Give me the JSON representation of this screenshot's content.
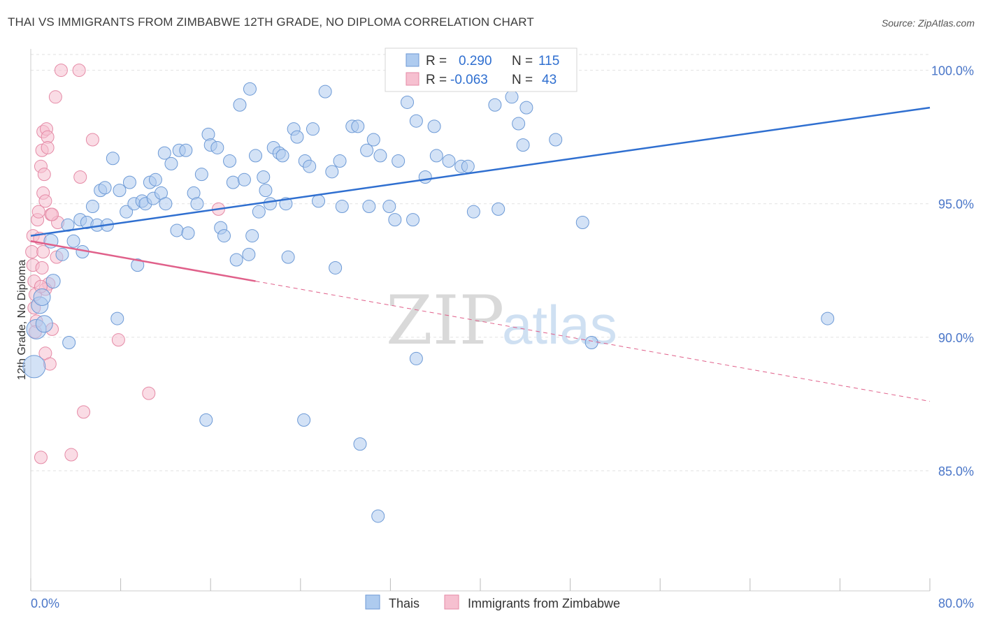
{
  "title": "THAI VS IMMIGRANTS FROM ZIMBABWE 12TH GRADE, NO DIPLOMA CORRELATION CHART",
  "source": "Source: ZipAtlas.com",
  "watermark": {
    "zip": "ZIP",
    "atlas": "atlas"
  },
  "colors": {
    "thais_fill": "#aecbef",
    "thais_stroke": "#6d9ad6",
    "thais_line": "#2f6fd0",
    "zim_fill": "#f6c0d0",
    "zim_stroke": "#e58aa6",
    "zim_line": "#e0608a",
    "grid": "#e2e2e2",
    "tick_text": "#4a76c8"
  },
  "stats": {
    "r_label": "R =",
    "n_label": "N =",
    "thais": {
      "r": "0.290",
      "n": "115"
    },
    "zim": {
      "r": "-0.063",
      "n": "43"
    }
  },
  "chart_data": {
    "type": "scatter",
    "xlabel": "",
    "ylabel": "12th Grade, No Diploma",
    "xlim": [
      0,
      80
    ],
    "ylim": [
      80.5,
      100.8
    ],
    "x_ticks": [
      "0.0%",
      "80.0%"
    ],
    "y_ticks": [
      "100.0%",
      "95.0%",
      "90.0%",
      "85.0%"
    ],
    "y_tick_values": [
      100,
      95,
      90,
      85
    ],
    "grid": true,
    "legend": [
      "Thais",
      "Immigrants from Zimbabwe"
    ],
    "series": [
      {
        "name": "Thais",
        "trend": {
          "x": [
            0,
            80
          ],
          "y": [
            93.8,
            98.6
          ],
          "style": "solid"
        },
        "points": [
          [
            0.3,
            88.9,
            16
          ],
          [
            0.5,
            90.3,
            14
          ],
          [
            0.8,
            91.2,
            12
          ],
          [
            1.2,
            90.5,
            12
          ],
          [
            1.0,
            91.5,
            12
          ],
          [
            2.0,
            92.1,
            10
          ],
          [
            1.8,
            93.6,
            10
          ],
          [
            2.8,
            93.1,
            9
          ],
          [
            3.4,
            89.8,
            9
          ],
          [
            3.3,
            94.2,
            9
          ],
          [
            3.8,
            93.6,
            9
          ],
          [
            4.4,
            94.4,
            9
          ],
          [
            4.6,
            93.2,
            9
          ],
          [
            5.0,
            94.3,
            9
          ],
          [
            5.5,
            94.9,
            9
          ],
          [
            5.9,
            94.2,
            9
          ],
          [
            6.2,
            95.5,
            9
          ],
          [
            6.6,
            95.6,
            9
          ],
          [
            6.8,
            94.2,
            9
          ],
          [
            7.3,
            96.7,
            9
          ],
          [
            7.9,
            95.5,
            9
          ],
          [
            8.5,
            94.7,
            9
          ],
          [
            8.8,
            95.8,
            9
          ],
          [
            9.2,
            95.0,
            9
          ],
          [
            9.5,
            92.7,
            9
          ],
          [
            9.9,
            95.1,
            9
          ],
          [
            10.2,
            95.0,
            9
          ],
          [
            10.6,
            95.8,
            9
          ],
          [
            10.9,
            95.2,
            9
          ],
          [
            11.1,
            95.9,
            9
          ],
          [
            11.6,
            95.4,
            9
          ],
          [
            12.0,
            95.0,
            9
          ],
          [
            11.9,
            96.9,
            9
          ],
          [
            12.5,
            96.5,
            9
          ],
          [
            13.0,
            94.0,
            9
          ],
          [
            13.2,
            97.0,
            9
          ],
          [
            13.8,
            97.0,
            9
          ],
          [
            14.0,
            93.9,
            9
          ],
          [
            14.5,
            95.4,
            9
          ],
          [
            14.8,
            95.0,
            9
          ],
          [
            15.2,
            96.1,
            9
          ],
          [
            15.8,
            97.6,
            9
          ],
          [
            16.0,
            97.2,
            9
          ],
          [
            16.6,
            97.1,
            9
          ],
          [
            16.9,
            94.1,
            9
          ],
          [
            17.2,
            93.8,
            9
          ],
          [
            17.7,
            96.6,
            9
          ],
          [
            18.0,
            95.8,
            9
          ],
          [
            18.3,
            92.9,
            9
          ],
          [
            18.6,
            98.7,
            9
          ],
          [
            19.0,
            95.9,
            9
          ],
          [
            19.4,
            93.1,
            9
          ],
          [
            19.7,
            93.8,
            9
          ],
          [
            20.0,
            96.8,
            9
          ],
          [
            20.3,
            94.7,
            9
          ],
          [
            20.7,
            96.0,
            9
          ],
          [
            20.9,
            95.5,
            9
          ],
          [
            21.3,
            95.0,
            9
          ],
          [
            21.6,
            97.1,
            9
          ],
          [
            22.1,
            96.9,
            9
          ],
          [
            22.4,
            96.8,
            9
          ],
          [
            22.7,
            95.0,
            9
          ],
          [
            22.9,
            93.0,
            9
          ],
          [
            23.4,
            97.8,
            9
          ],
          [
            23.7,
            97.5,
            9
          ],
          [
            24.4,
            96.6,
            9
          ],
          [
            24.8,
            96.4,
            9
          ],
          [
            25.1,
            97.8,
            9
          ],
          [
            25.6,
            95.1,
            9
          ],
          [
            26.2,
            99.2,
            9
          ],
          [
            26.8,
            96.2,
            9
          ],
          [
            27.1,
            92.6,
            9
          ],
          [
            27.5,
            96.6,
            9
          ],
          [
            27.7,
            94.9,
            9
          ],
          [
            28.6,
            97.9,
            9
          ],
          [
            29.1,
            97.9,
            9
          ],
          [
            29.9,
            97.0,
            9
          ],
          [
            30.1,
            94.9,
            9
          ],
          [
            30.5,
            97.4,
            9
          ],
          [
            31.1,
            96.8,
            9
          ],
          [
            31.9,
            94.9,
            9
          ],
          [
            32.4,
            94.4,
            9
          ],
          [
            32.7,
            96.6,
            9
          ],
          [
            33.1,
            100.0,
            9
          ],
          [
            33.5,
            98.8,
            9
          ],
          [
            34.0,
            94.4,
            9
          ],
          [
            34.3,
            98.1,
            9
          ],
          [
            35.1,
            96.0,
            9
          ],
          [
            35.9,
            97.9,
            9
          ],
          [
            36.1,
            96.8,
            9
          ],
          [
            37.2,
            96.6,
            9
          ],
          [
            38.3,
            96.4,
            9
          ],
          [
            38.9,
            96.4,
            9
          ],
          [
            39.4,
            94.7,
            9
          ],
          [
            40.1,
            100.0,
            9
          ],
          [
            41.3,
            98.7,
            9
          ],
          [
            41.6,
            94.8,
            9
          ],
          [
            42.8,
            99.0,
            9
          ],
          [
            43.4,
            98.0,
            9
          ],
          [
            44.1,
            98.6,
            9
          ],
          [
            43.8,
            97.2,
            9
          ],
          [
            45.4,
            100.0,
            9
          ],
          [
            46.7,
            97.4,
            9
          ],
          [
            49.1,
            94.3,
            9
          ],
          [
            49.9,
            89.8,
            9
          ],
          [
            70.9,
            90.7,
            9
          ],
          [
            7.7,
            90.7,
            9
          ],
          [
            15.6,
            86.9,
            9
          ],
          [
            24.3,
            86.9,
            9
          ],
          [
            34.3,
            89.2,
            9
          ],
          [
            29.3,
            86.0,
            9
          ],
          [
            30.9,
            83.3,
            9
          ],
          [
            19.5,
            99.3,
            9
          ]
        ]
      },
      {
        "name": "Immigrants from Zimbabwe",
        "trend": {
          "x": [
            0,
            20
          ],
          "y": [
            93.6,
            92.1
          ],
          "style": "solid",
          "dashed_to": [
            80,
            87.6
          ]
        },
        "points": [
          [
            0.2,
            93.8,
            9
          ],
          [
            0.1,
            93.2,
            9
          ],
          [
            0.2,
            92.7,
            9
          ],
          [
            0.3,
            92.1,
            9
          ],
          [
            0.4,
            91.6,
            9
          ],
          [
            0.3,
            91.1,
            9
          ],
          [
            0.5,
            90.6,
            9
          ],
          [
            0.4,
            90.2,
            9
          ],
          [
            0.6,
            94.4,
            9
          ],
          [
            0.7,
            94.7,
            9
          ],
          [
            0.8,
            93.7,
            9
          ],
          [
            0.9,
            96.4,
            9
          ],
          [
            1.0,
            97.0,
            9
          ],
          [
            1.1,
            97.7,
            9
          ],
          [
            1.1,
            95.4,
            9
          ],
          [
            1.2,
            96.1,
            9
          ],
          [
            1.3,
            95.1,
            9
          ],
          [
            1.4,
            97.8,
            9
          ],
          [
            1.5,
            97.5,
            9
          ],
          [
            1.5,
            97.1,
            9
          ],
          [
            1.6,
            92.0,
            9
          ],
          [
            1.8,
            94.6,
            9
          ],
          [
            1.9,
            90.3,
            9
          ],
          [
            2.2,
            99.0,
            9
          ],
          [
            2.3,
            93.0,
            9
          ],
          [
            2.4,
            94.3,
            9
          ],
          [
            2.7,
            100.0,
            9
          ],
          [
            4.3,
            100.0,
            9
          ],
          [
            4.4,
            96.0,
            9
          ],
          [
            5.5,
            97.4,
            9
          ],
          [
            1.0,
            92.6,
            9
          ],
          [
            1.3,
            91.8,
            9
          ],
          [
            1.3,
            89.4,
            9
          ],
          [
            1.7,
            89.0,
            9
          ],
          [
            0.9,
            85.5,
            9
          ],
          [
            3.6,
            85.6,
            9
          ],
          [
            4.7,
            87.2,
            9
          ],
          [
            7.8,
            89.9,
            9
          ],
          [
            10.5,
            87.9,
            9
          ],
          [
            16.7,
            94.8,
            9
          ],
          [
            1.1,
            93.2,
            9
          ],
          [
            0.9,
            91.9,
            9
          ],
          [
            1.9,
            94.6,
            9
          ]
        ]
      }
    ]
  }
}
